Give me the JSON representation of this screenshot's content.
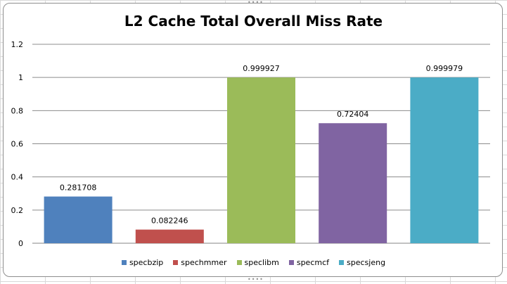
{
  "chart_data": {
    "type": "bar",
    "title": "L2 Cache Total Overall Miss Rate",
    "xlabel": "",
    "ylabel": "",
    "ylim": [
      0,
      1.2
    ],
    "yticks": [
      "0",
      "0.2",
      "0.4",
      "0.6",
      "0.8",
      "1",
      "1.2"
    ],
    "grid": true,
    "legend_position": "bottom",
    "categories": [
      "specbzip",
      "spechmmer",
      "speclibm",
      "specmcf",
      "specsjeng"
    ],
    "values": [
      0.281708,
      0.082246,
      0.999927,
      0.72404,
      0.999979
    ],
    "data_labels": [
      "0.281708",
      "0.082246",
      "0.999927",
      "0.72404",
      "0.999979"
    ],
    "colors": [
      "#4f81bd",
      "#c0504d",
      "#9bbb59",
      "#8064a2",
      "#4bacc6"
    ]
  }
}
